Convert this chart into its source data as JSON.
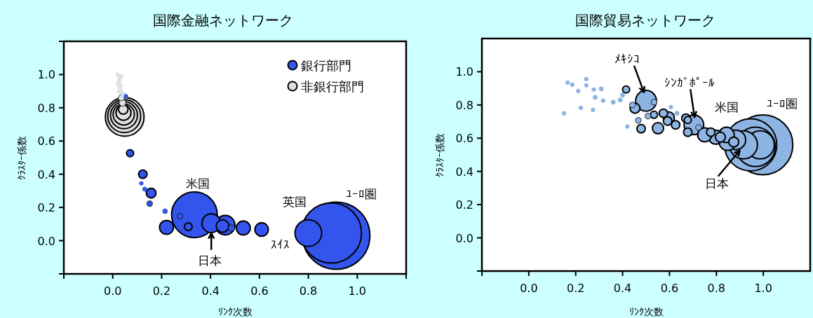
{
  "chart_data": [
    {
      "type": "bubble",
      "title": "国際金融ネットワーク",
      "xlabel": "ﾘﾝｸ次数",
      "ylabel": "ｸﾗｽﾀｰ係数",
      "xlim": [
        -0.2,
        1.2
      ],
      "ylim": [
        -0.2,
        1.2
      ],
      "xticks": [
        {
          "value": -0.2,
          "label": null
        },
        {
          "value": 0,
          "label": "0.0"
        },
        {
          "value": 0.2,
          "label": "0.2"
        },
        {
          "value": 0.4,
          "label": "0.4"
        },
        {
          "value": 0.6,
          "label": "0.6"
        },
        {
          "value": 0.8,
          "label": "0.8"
        },
        {
          "value": 1.0,
          "label": "1.0"
        },
        {
          "value": 1.2,
          "label": null
        }
      ],
      "yticks": [
        {
          "value": -0.2,
          "label": null
        },
        {
          "value": 0,
          "label": "0.0"
        },
        {
          "value": 0.2,
          "label": "0.2"
        },
        {
          "value": 0.4,
          "label": "0.4"
        },
        {
          "value": 0.6,
          "label": "0.6"
        },
        {
          "value": 0.8,
          "label": "0.8"
        },
        {
          "value": 1.0,
          "label": "1.0"
        },
        {
          "value": 1.2,
          "label": null
        }
      ],
      "legend": "top right",
      "series": [
        {
          "name": "非銀行部門",
          "color": "#e0e0e0",
          "x": [
            0.049,
            0.047,
            0.046,
            0.045,
            0.044,
            0.043,
            0.04,
            0.035,
            0.03,
            0.03,
            0.025,
            0.028,
            0.02,
            0.035,
            0.045,
            0.022
          ],
          "values": [
            0.745,
            0.75,
            0.755,
            0.76,
            0.77,
            0.79,
            0.83,
            0.86,
            0.9,
            0.93,
            0.96,
            0.98,
            1.0,
            0.99,
            0.88,
            0.94
          ],
          "sizes": [
            0.33,
            0.24,
            0.16,
            0.1,
            0.05,
            0.02,
            0.01,
            0.008,
            0.006,
            0.005,
            0.004,
            0.004,
            0.003,
            0.003,
            0.005,
            0.003
          ]
        },
        {
          "name": "銀行部門",
          "color": "#3355ee",
          "x": [
            0.914,
            0.894,
            0.334,
            0.8,
            0.46,
            0.403,
            0.22,
            0.534,
            0.609,
            0.449,
            0.157,
            0.123,
            0.309,
            0.071,
            0.486,
            0.151,
            0.274,
            0.214,
            0.131,
            0.054,
            0.117
          ],
          "values": [
            0.03,
            0.046,
            0.156,
            0.046,
            0.093,
            0.105,
            0.08,
            0.076,
            0.067,
            0.088,
            0.286,
            0.4,
            0.084,
            0.526,
            0.076,
            0.223,
            0.147,
            0.177,
            0.31,
            0.87,
            0.345
          ],
          "sizes": [
            1,
            0.8,
            0.46,
            0.157,
            0.085,
            0.077,
            0.043,
            0.043,
            0.04,
            0.035,
            0.021,
            0.016,
            0.013,
            0.011,
            0.009,
            0.007,
            0.007,
            0.005,
            0.004,
            0.003,
            0.003
          ]
        }
      ],
      "annotations": [
        {
          "text": "米国",
          "x": 0.334,
          "y": 0.156
        },
        {
          "text": "日本",
          "x": 0.403,
          "y": 0.105
        },
        {
          "text": "英国",
          "x": 0.894,
          "y": 0.046
        },
        {
          "text": "ﾕｰﾛ圏",
          "x": 0.914,
          "y": 0.03
        },
        {
          "text": "ｽｲｽ",
          "x": 0.8,
          "y": 0.046
        }
      ]
    },
    {
      "type": "bubble",
      "title": "国際貿易ネットワーク",
      "xlabel": "ﾘﾝｸ次数",
      "ylabel": "ｸﾗｽﾀｰ係数",
      "xlim": [
        -0.2,
        1.2
      ],
      "ylim": [
        -0.2,
        1.2
      ],
      "xticks": [
        {
          "value": -0.2,
          "label": null
        },
        {
          "value": 0,
          "label": "0.0"
        },
        {
          "value": 0.2,
          "label": "0.2"
        },
        {
          "value": 0.4,
          "label": "0.4"
        },
        {
          "value": 0.6,
          "label": "0.6"
        },
        {
          "value": 0.8,
          "label": "0.8"
        },
        {
          "value": 1.0,
          "label": "1.0"
        }
      ],
      "yticks": [
        {
          "value": -0.2,
          "label": null
        },
        {
          "value": 0,
          "label": "0.0"
        },
        {
          "value": 0.2,
          "label": "0.2"
        },
        {
          "value": 0.4,
          "label": "0.4"
        },
        {
          "value": 0.6,
          "label": "0.6"
        },
        {
          "value": 0.8,
          "label": "0.8"
        },
        {
          "value": 1.0,
          "label": "1.0"
        }
      ],
      "series": [
        {
          "color": "#8db4e2",
          "x": [
            0.998,
            0.946,
            0.967,
            0.987,
            0.915,
            0.5,
            0.704,
            0.883,
            0.848,
            0.843,
            0.797,
            0.75,
            0.551,
            0.453,
            0.817,
            0.874,
            0.597,
            0.67,
            0.626,
            0.574,
            0.479,
            0.776,
            0.592,
            0.678,
            0.415,
            0.678,
            0.534,
            0.467,
            0.534,
            0.724,
            0.508,
            0.442,
            0.42,
            0.4,
            0.283,
            0.309,
            0.632,
            0.36,
            0.39,
            0.606,
            0.277,
            0.317,
            0.245,
            0.211,
            0.15,
            0.185,
            0.165,
            0.222,
            0.274,
            0.245
          ],
          "values": [
            0.56,
            0.56,
            0.548,
            0.56,
            0.56,
            0.825,
            0.68,
            0.59,
            0.577,
            0.62,
            0.606,
            0.62,
            0.66,
            0.78,
            0.606,
            0.577,
            0.724,
            0.72,
            0.68,
            0.75,
            0.657,
            0.636,
            0.703,
            0.71,
            0.893,
            0.636,
            0.817,
            0.707,
            0.741,
            0.665,
            0.733,
            0.8,
            0.67,
            0.86,
            0.846,
            0.897,
            0.75,
            0.817,
            0.83,
            0.787,
            0.893,
            0.826,
            0.918,
            0.884,
            0.75,
            0.922,
            0.935,
            0.783,
            0.77,
            0.956
          ],
          "sizes": [
            1,
            0.76,
            0.43,
            0.22,
            0.22,
            0.12,
            0.107,
            0.107,
            0.08,
            0.066,
            0.055,
            0.055,
            0.035,
            0.027,
            0.027,
            0.027,
            0.035,
            0.02,
            0.02,
            0.02,
            0.02,
            0.02,
            0.02,
            0.014,
            0.014,
            0.02,
            0.009,
            0.009,
            0.014,
            0.009,
            0.009,
            0.009,
            0.004,
            0.005,
            0.005,
            0.005,
            0.005,
            0.005,
            0.005,
            0.004,
            0.004,
            0.004,
            0.004,
            0.004,
            0.004,
            0.004,
            0.004,
            0.004,
            0.004,
            0.004
          ]
        }
      ],
      "annotations": [
        {
          "text": "ﾒｷｼｺ",
          "x": 0.5,
          "y": 0.825
        },
        {
          "text": "ｼﾝｶﾞﾎﾟｰﾙ",
          "x": 0.704,
          "y": 0.68
        },
        {
          "text": "米国",
          "x": 0.946,
          "y": 0.56
        },
        {
          "text": "ﾕｰﾛ圏",
          "x": 0.998,
          "y": 0.56
        },
        {
          "text": "日本",
          "x": 0.915,
          "y": 0.56
        }
      ]
    }
  ]
}
